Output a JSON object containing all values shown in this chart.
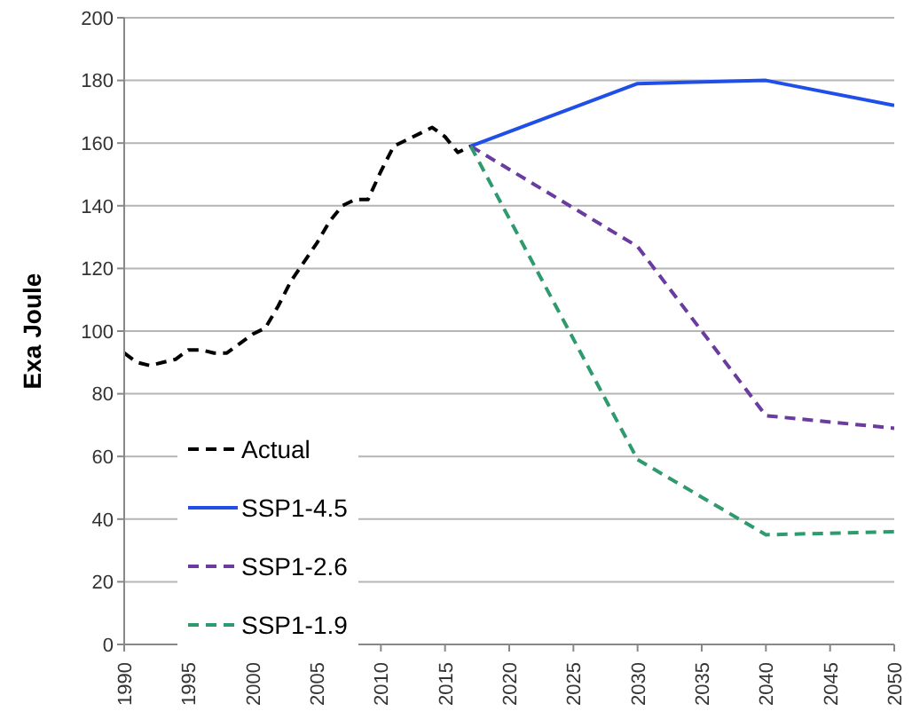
{
  "chart_data": {
    "type": "line",
    "ylabel": "Exa Joule",
    "xlim": [
      1990,
      2050
    ],
    "xticks": [
      1990,
      1995,
      2000,
      2005,
      2010,
      2015,
      2020,
      2025,
      2030,
      2035,
      2040,
      2045,
      2050
    ],
    "ylim": [
      0,
      200
    ],
    "yticks": [
      0,
      20,
      40,
      60,
      80,
      100,
      120,
      140,
      160,
      180,
      200
    ],
    "grid": "y",
    "legend": "bottom left",
    "marker": "none",
    "series": [
      {
        "name": "Actual",
        "color": "#000000",
        "line_style": "dashed",
        "x": [
          1990,
          1991,
          1992,
          1993,
          1994,
          1995,
          1996,
          1997,
          1998,
          1999,
          2000,
          2001,
          2002,
          2003,
          2004,
          2005,
          2006,
          2007,
          2008,
          2009,
          2010,
          2011,
          2012,
          2013,
          2014,
          2015,
          2016,
          2017
        ],
        "values": [
          93,
          90,
          89,
          90,
          91,
          94,
          94,
          93,
          93,
          96,
          99,
          101,
          108,
          116,
          122,
          128,
          135,
          140,
          142,
          142,
          151,
          159,
          161,
          163,
          165,
          162,
          157,
          159
        ]
      },
      {
        "name": "SSP1-4.5",
        "color": "#1f4fe8",
        "line_style": "solid",
        "x": [
          2017,
          2030,
          2040,
          2050
        ],
        "values": [
          159,
          179,
          180,
          172
        ]
      },
      {
        "name": "SSP1-2.6",
        "color": "#6a3ba0",
        "line_style": "dashed",
        "x": [
          2017,
          2030,
          2040,
          2050
        ],
        "values": [
          159,
          127,
          73,
          69
        ]
      },
      {
        "name": "SSP1-1.9",
        "color": "#2e9a6e",
        "line_style": "dashed",
        "x": [
          2017,
          2030,
          2040,
          2050
        ],
        "values": [
          159,
          59,
          35,
          36
        ]
      }
    ]
  }
}
